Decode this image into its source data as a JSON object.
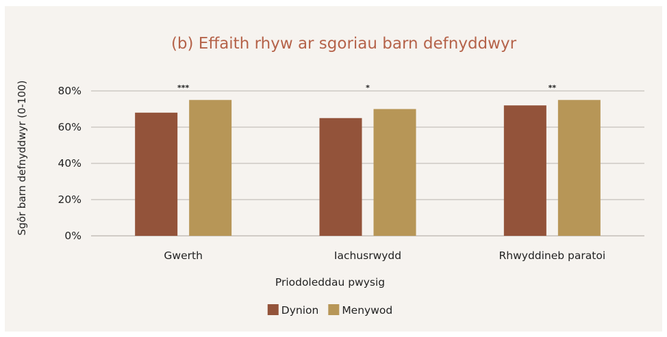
{
  "chart_data": {
    "type": "bar",
    "title": "(b) Effaith rhyw ar sgoriau barn defnyddwyr",
    "xlabel": "Priodoleddau pwysig",
    "ylabel": "Sgôr barn defnyddwyr (0-100)",
    "ylim": [
      0,
      80
    ],
    "yticks": [
      "0%",
      "20%",
      "40%",
      "60%",
      "80%"
    ],
    "categories": [
      "Gwerth",
      "Iachusrwydd",
      "Rhwyddineb paratoi"
    ],
    "series": [
      {
        "name": "Dynion",
        "color": "#93533a",
        "values": [
          68,
          65,
          72
        ]
      },
      {
        "name": "Menywod",
        "color": "#b79657",
        "values": [
          75,
          70,
          75
        ]
      }
    ],
    "significance": [
      "***",
      "*",
      "**"
    ],
    "grid": true,
    "legend_position": "bottom",
    "colors": {
      "panel": "#f6f3ef",
      "title": "#b5634a",
      "grid": "#b8b3ad",
      "text": "#222222"
    }
  }
}
